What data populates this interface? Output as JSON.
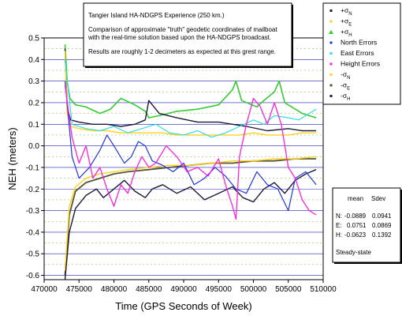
{
  "annotation": {
    "title": "Tangier Island HA-NDGPS Experience (250 km.)",
    "line1": "Comparison of approximate \"truth\" geodetic coordinates of mailboat",
    "line2": "with the real-time solution based upon the HA-NDGPS broadcast.",
    "line3": "Results are roughly 1-2 decimeters as expected at this grest range."
  },
  "stats": {
    "header_mean": "mean",
    "header_sdev": "Sdev",
    "rows": [
      {
        "label": "N:",
        "mean": "-0.0889",
        "sdev": "0.0941"
      },
      {
        "label": "E:",
        "mean": "0.0751",
        "sdev": "0.0869"
      },
      {
        "label": "H:",
        "mean": "-0.0623",
        "sdev": "0.1392"
      }
    ],
    "footer": "Steady-state"
  },
  "chart_data": {
    "type": "line",
    "title": "",
    "xlabel": "Time (GPS Seconds of Week)",
    "ylabel": "NEH (meters)",
    "xlim": [
      470000,
      510000
    ],
    "ylim": [
      -0.62,
      0.5
    ],
    "xticks": [
      "470000",
      "475000",
      "480000",
      "485000",
      "490000",
      "495000",
      "500000",
      "505000",
      "510000"
    ],
    "yticks": [
      "0.5",
      "0.4",
      "0.3",
      "0.2",
      "0.1",
      "0.0",
      "-0.1",
      "-0.2",
      "-0.3",
      "-0.4",
      "-0.5",
      "-0.6"
    ],
    "grid": true,
    "legend_position": "right",
    "colors": {
      "north_sigma": "#1a1a3a",
      "east_sigma": "#ffd21f",
      "height_sigma": "#33cc33",
      "north_error": "#2233ee",
      "east_error": "#33dddd",
      "height_error": "#ff22dd",
      "neg_north_sigma": "#ffd21f",
      "neg_east_sigma": "#555533",
      "neg_height_sigma": "#1a1a3a"
    },
    "legend": [
      {
        "label": "+σN",
        "base": "+σ",
        "sub": "N",
        "color_key": "north_sigma",
        "marker": "dot"
      },
      {
        "label": "+σE",
        "base": "+σ",
        "sub": "E",
        "color_key": "east_sigma",
        "marker": "dot"
      },
      {
        "label": "+σH",
        "base": "+σ",
        "sub": "H",
        "color_key": "height_sigma",
        "marker": "tri"
      },
      {
        "label": "North Errors",
        "base": "North Errors",
        "sub": "",
        "color_key": "north_error",
        "marker": "dot"
      },
      {
        "label": "East Errors",
        "base": "East Errors",
        "sub": "",
        "color_key": "east_error",
        "marker": "dot"
      },
      {
        "label": "Height Errors",
        "base": "Height Errors",
        "sub": "",
        "color_key": "height_error",
        "marker": "dot"
      },
      {
        "label": "-σN",
        "base": "-σ",
        "sub": "N",
        "color_key": "neg_north_sigma",
        "marker": "dot"
      },
      {
        "label": "-σE",
        "base": "-σ",
        "sub": "E",
        "color_key": "neg_east_sigma",
        "marker": "dot"
      },
      {
        "label": "-σH",
        "base": "-σ",
        "sub": "H",
        "color_key": "neg_height_sigma",
        "marker": "dot"
      }
    ],
    "series": [
      {
        "key": "height_sigma",
        "color_key": "height_sigma",
        "width": 1.6,
        "x": [
          473000,
          473300,
          473700,
          474500,
          476000,
          478000,
          479500,
          481000,
          483000,
          484500,
          485000,
          486500,
          489000,
          492000,
          495000,
          497000,
          497500,
          498300,
          500500,
          501500,
          503000,
          503700,
          504500,
          505500,
          507000,
          509000
        ],
        "y": [
          0.47,
          0.3,
          0.22,
          0.19,
          0.18,
          0.15,
          0.17,
          0.22,
          0.19,
          0.16,
          0.13,
          0.14,
          0.16,
          0.17,
          0.19,
          0.26,
          0.3,
          0.21,
          0.18,
          0.21,
          0.25,
          0.3,
          0.2,
          0.18,
          0.15,
          0.13
        ]
      },
      {
        "key": "north_sigma",
        "color_key": "north_sigma",
        "width": 1.4,
        "x": [
          473000,
          473300,
          473800,
          475000,
          477000,
          479000,
          481000,
          483000,
          484500,
          485000,
          486500,
          489000,
          492000,
          495000,
          497000,
          499000,
          502000,
          505000,
          507000,
          509000
        ],
        "y": [
          0.45,
          0.18,
          0.12,
          0.11,
          0.1,
          0.1,
          0.09,
          0.1,
          0.12,
          0.21,
          0.15,
          0.13,
          0.11,
          0.11,
          0.1,
          0.09,
          0.07,
          0.08,
          0.07,
          0.07
        ]
      },
      {
        "key": "east_sigma",
        "color_key": "east_sigma",
        "width": 1.4,
        "x": [
          473000,
          473300,
          473800,
          475000,
          477000,
          479000,
          481000,
          483000,
          485000,
          487000,
          489000,
          492000,
          495000,
          498000,
          500000,
          502000,
          505000,
          507000,
          509000
        ],
        "y": [
          0.44,
          0.15,
          0.09,
          0.08,
          0.07,
          0.07,
          0.06,
          0.06,
          0.06,
          0.06,
          0.05,
          0.05,
          0.05,
          0.05,
          0.06,
          0.05,
          0.05,
          0.06,
          0.06
        ]
      },
      {
        "key": "neg_east_sigma",
        "color_key": "neg_east_sigma",
        "width": 1.8,
        "x": [
          473000,
          473600,
          474500,
          476000,
          478000,
          480000,
          482000,
          485000,
          488000,
          491000,
          494000,
          497000,
          500000,
          503000,
          506000,
          509000
        ],
        "y": [
          -0.6,
          -0.32,
          -0.21,
          -0.17,
          -0.15,
          -0.13,
          -0.12,
          -0.11,
          -0.1,
          -0.09,
          -0.08,
          -0.08,
          -0.07,
          -0.07,
          -0.06,
          -0.06
        ]
      },
      {
        "key": "neg_north_sigma",
        "color_key": "neg_north_sigma",
        "width": 1.4,
        "x": [
          473000,
          473600,
          474500,
          476000,
          478000,
          480000,
          482000,
          485000,
          488000,
          491000,
          494000,
          497000,
          500000,
          503000,
          506000,
          509000
        ],
        "y": [
          -0.58,
          -0.28,
          -0.19,
          -0.15,
          -0.13,
          -0.12,
          -0.11,
          -0.1,
          -0.09,
          -0.09,
          -0.08,
          -0.07,
          -0.07,
          -0.06,
          -0.06,
          -0.05
        ]
      },
      {
        "key": "neg_height_sigma",
        "color_key": "neg_height_sigma",
        "width": 1.4,
        "x": [
          473000,
          473600,
          474500,
          476000,
          477500,
          478500,
          480000,
          481500,
          483000,
          484500,
          485500,
          487000,
          489000,
          491000,
          493000,
          495000,
          497000,
          498500,
          500000,
          501500,
          503000,
          504500,
          506000,
          507500,
          509000
        ],
        "y": [
          -0.62,
          -0.4,
          -0.29,
          -0.23,
          -0.2,
          -0.24,
          -0.2,
          -0.16,
          -0.21,
          -0.24,
          -0.2,
          -0.18,
          -0.22,
          -0.19,
          -0.25,
          -0.22,
          -0.19,
          -0.24,
          -0.26,
          -0.2,
          -0.17,
          -0.22,
          -0.16,
          -0.13,
          -0.11
        ]
      },
      {
        "key": "east_error",
        "color_key": "east_error",
        "width": 1.2,
        "x": [
          473000,
          474000,
          476000,
          478000,
          480000,
          482000,
          484000,
          486000,
          488000,
          490000,
          492000,
          494000,
          496000,
          498000,
          500000,
          501500,
          503000,
          505000,
          506500,
          508000,
          509000
        ],
        "y": [
          0.4,
          0.1,
          0.08,
          0.07,
          0.09,
          0.06,
          0.08,
          0.1,
          0.06,
          0.05,
          0.07,
          0.04,
          0.06,
          0.09,
          0.12,
          0.1,
          0.14,
          0.13,
          0.12,
          0.15,
          0.17
        ]
      },
      {
        "key": "north_error",
        "color_key": "north_error",
        "width": 1.2,
        "x": [
          473000,
          474000,
          475000,
          476500,
          478000,
          479000,
          480000,
          481500,
          482500,
          483500,
          484500,
          485500,
          487000,
          488500,
          490000,
          491500,
          493000,
          494500,
          496000,
          497500,
          499000,
          500500,
          502000,
          503500,
          505000,
          506000,
          507500,
          509000
        ],
        "y": [
          0.3,
          -0.05,
          -0.15,
          -0.1,
          -0.02,
          0.05,
          0.0,
          -0.08,
          -0.05,
          0.02,
          0.0,
          -0.07,
          -0.09,
          -0.12,
          -0.08,
          -0.18,
          -0.15,
          -0.1,
          -0.14,
          -0.2,
          -0.22,
          -0.12,
          -0.18,
          -0.2,
          -0.3,
          -0.15,
          -0.12,
          -0.18
        ]
      },
      {
        "key": "height_error",
        "color_key": "height_error",
        "width": 1.3,
        "x": [
          473000,
          474000,
          475000,
          476000,
          477000,
          478000,
          479000,
          480000,
          481000,
          482000,
          483000,
          484000,
          485000,
          486000,
          487500,
          489000,
          490500,
          492000,
          493500,
          495000,
          496000,
          497000,
          497500,
          498000,
          499000,
          500000,
          501000,
          502000,
          503000,
          504000,
          505000,
          506000,
          507000,
          508000,
          509000
        ],
        "y": [
          0.28,
          0.04,
          -0.08,
          0.0,
          -0.15,
          -0.1,
          -0.2,
          -0.28,
          -0.18,
          -0.22,
          -0.12,
          -0.05,
          -0.1,
          -0.08,
          0.0,
          -0.05,
          -0.12,
          -0.1,
          -0.14,
          -0.06,
          -0.18,
          -0.28,
          -0.34,
          -0.05,
          0.1,
          0.22,
          0.18,
          0.1,
          0.2,
          0.1,
          -0.1,
          -0.15,
          -0.25,
          -0.3,
          -0.32
        ]
      }
    ]
  }
}
